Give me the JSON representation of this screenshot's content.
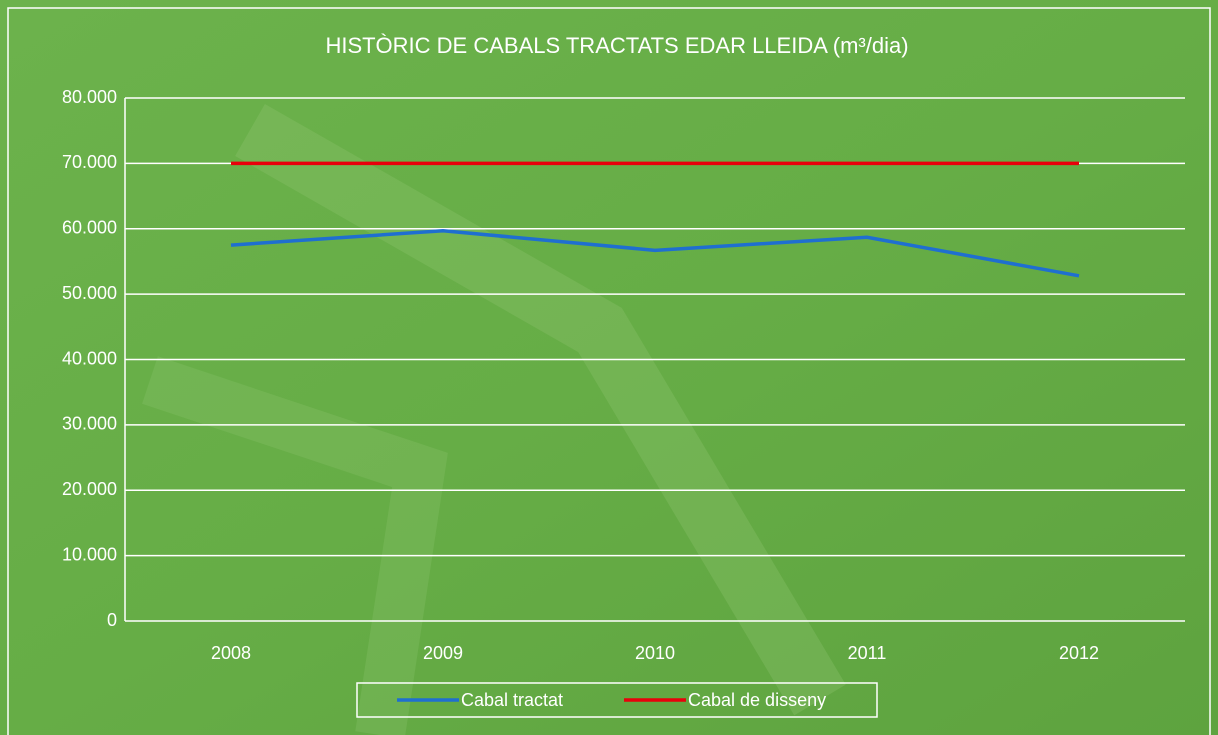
{
  "chart_data": {
    "type": "line",
    "title": "HISTÒRIC DE CABALS TRACTATS EDAR LLEIDA (m³/dia)",
    "categories": [
      "2008",
      "2009",
      "2010",
      "2011",
      "2012"
    ],
    "series": [
      {
        "name": "Cabal tractat",
        "color": "#1f6fd0",
        "values": [
          57500,
          59700,
          56700,
          58700,
          52800
        ]
      },
      {
        "name": "Cabal de disseny",
        "color": "#e8000b",
        "values": [
          70000,
          70000,
          70000,
          70000,
          70000
        ]
      }
    ],
    "ylim": [
      0,
      80000
    ],
    "yticks": [
      0,
      {
        "value": 10000,
        "label": "10.000"
      },
      {
        "value": 20000,
        "label": "20.000"
      },
      {
        "value": 30000,
        "label": "30.000"
      },
      {
        "value": 40000,
        "label": "40.000"
      },
      {
        "value": 50000,
        "label": "50.000"
      },
      {
        "value": 60000,
        "label": "60.000"
      },
      {
        "value": 70000,
        "label": "70.000"
      },
      {
        "value": 80000,
        "label": "80.000"
      }
    ],
    "grid": true,
    "legend": "bottom"
  }
}
